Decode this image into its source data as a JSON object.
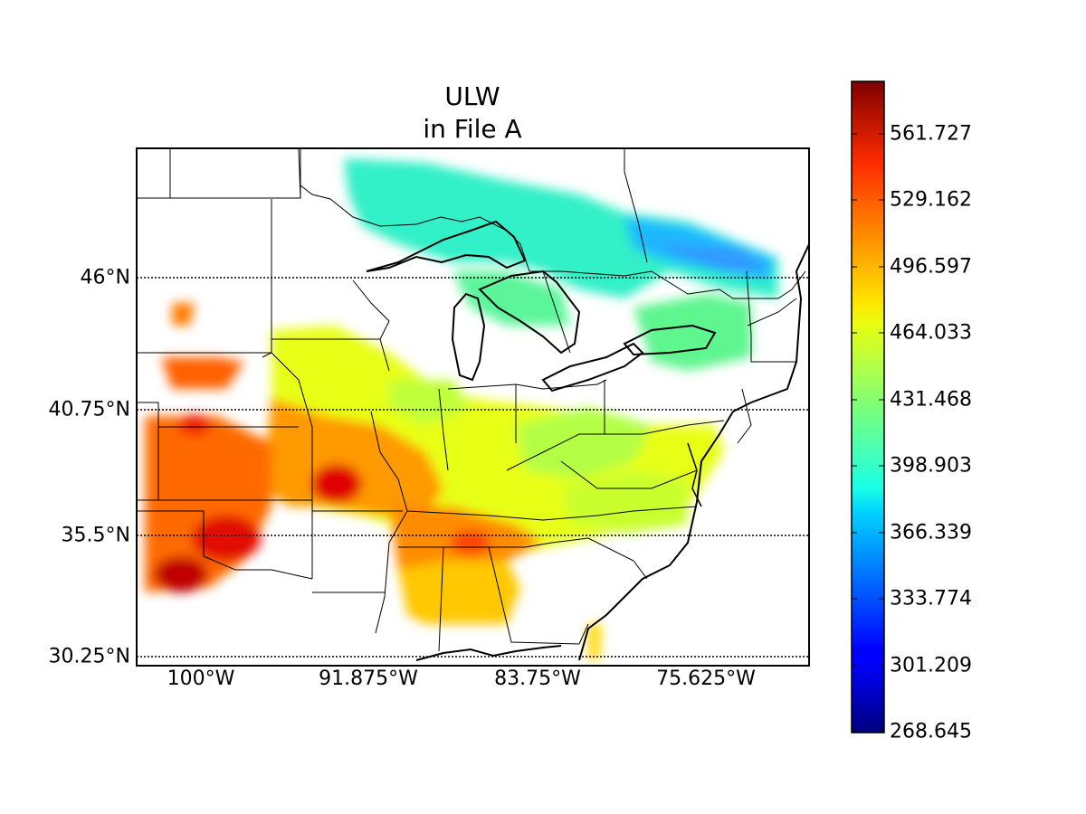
{
  "title_lines": [
    "ULW",
    "in File A"
  ],
  "map": {
    "lat_labels": [
      "46°N",
      "40.75°N",
      "35.5°N",
      "30.25°N"
    ],
    "lon_labels": [
      "100°W",
      "91.875°W",
      "83.75°W",
      "75.625°W"
    ]
  },
  "colorbar": {
    "colormap": "jet",
    "min": 268.645,
    "max": 594.291,
    "tick_labels": [
      "561.727",
      "529.162",
      "496.597",
      "464.033",
      "431.468",
      "398.903",
      "366.339",
      "333.774",
      "301.209",
      "268.645"
    ]
  },
  "colors": {
    "coastline": "#000000",
    "background": "#ffffff"
  }
}
